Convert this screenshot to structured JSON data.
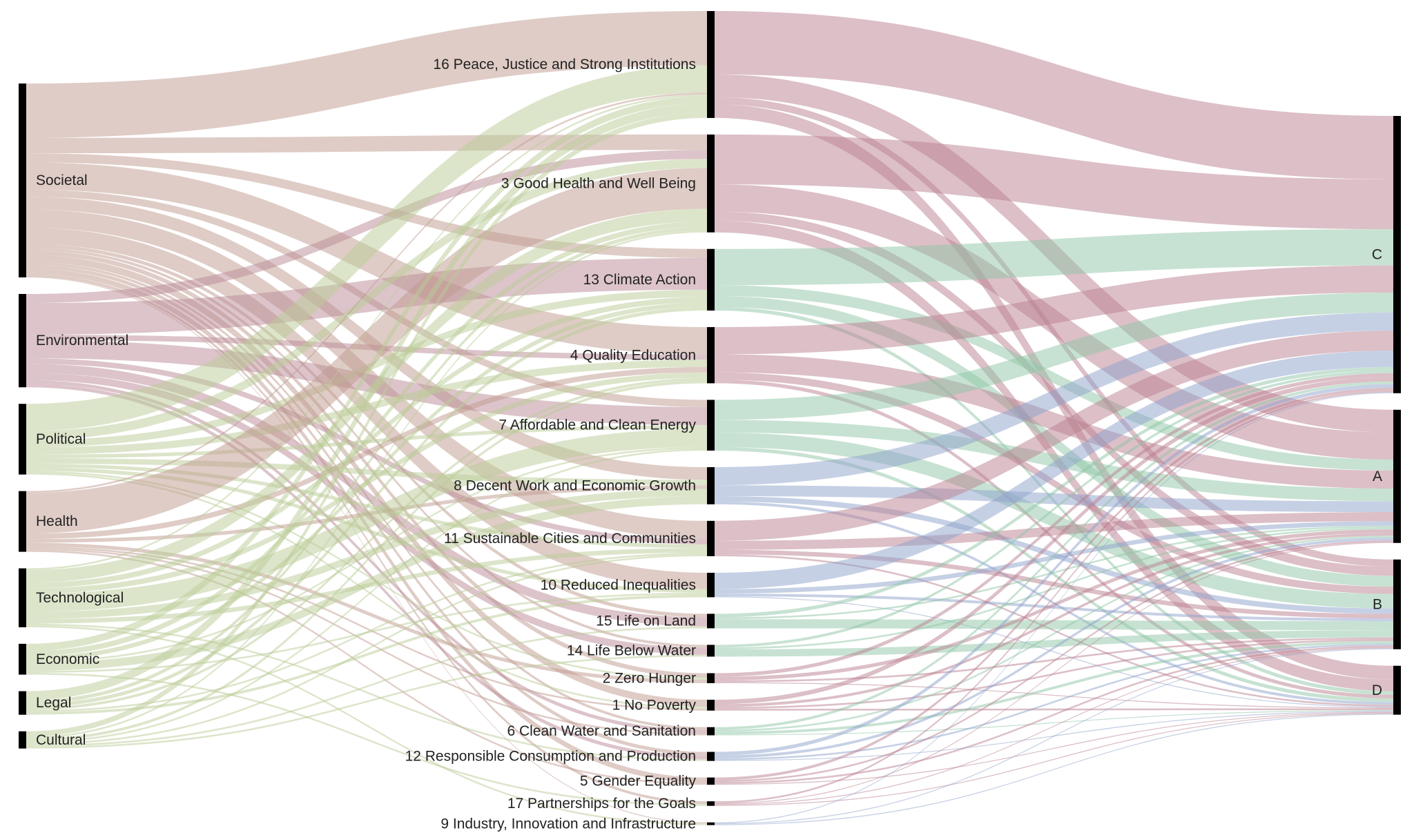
{
  "chart_data": {
    "type": "sankey",
    "columns": [
      [
        "Societal",
        "Environmental",
        "Political",
        "Health",
        "Technological",
        "Economic",
        "Legal",
        "Cultural"
      ],
      [
        "16 Peace, Justice and Strong Institutions",
        "3 Good Health and Well Being",
        "13 Climate Action",
        "4 Quality Education",
        "7 Affordable and Clean Energy",
        "8 Decent Work and Economic Growth",
        "11 Sustainable Cities and Communities",
        "10 Reduced Inequalities",
        "15 Life on Land",
        "14 Life Below Water",
        "2 Zero Hunger",
        "1 No Poverty",
        "6 Clean Water and Sanitation",
        "12 Responsible Consumption and Production",
        "5 Gender Equality",
        "17 Partnerships for the Goals",
        "9 Industry, Innovation and Infrastructure"
      ],
      [
        "C",
        "A",
        "B",
        "D"
      ]
    ],
    "node_colors": {
      "Societal": "#c09a8e",
      "Environmental": "#b98a95",
      "Health": "#c09a8e",
      "Political": "#b9cc95",
      "Technological": "#b9cc95",
      "Economic": "#b9cc95",
      "Legal": "#b9cc95",
      "Cultural": "#b9cc95",
      "social": "#b9808f",
      "environment": "#8fc6a5",
      "economy": "#8ea2cc"
    },
    "sdg_groups": {
      "16 Peace, Justice and Strong Institutions": "social",
      "3 Good Health and Well Being": "social",
      "13 Climate Action": "environment",
      "4 Quality Education": "social",
      "7 Affordable and Clean Energy": "environment",
      "8 Decent Work and Economic Growth": "economy",
      "11 Sustainable Cities and Communities": "social",
      "10 Reduced Inequalities": "economy",
      "15 Life on Land": "environment",
      "14 Life Below Water": "environment",
      "2 Zero Hunger": "social",
      "1 No Poverty": "social",
      "6 Clean Water and Sanitation": "environment",
      "12 Responsible Consumption and Production": "economy",
      "5 Gender Equality": "social",
      "17 Partnerships for the Goals": "social",
      "9 Industry, Innovation and Infrastructure": "economy"
    },
    "links_left": [
      [
        "Societal",
        {
          "16": 60,
          "3": 17,
          "4": 30,
          "7": 8,
          "8": 14,
          "11": 20,
          "10": 18,
          "13": 10,
          "2": 5,
          "1": 8,
          "5": 6,
          "15": 4,
          "14": 3,
          "6": 3,
          "12": 4,
          "17": 3,
          "9": 1
        }
      ],
      [
        "Environmental",
        {
          "13": 35,
          "7": 20,
          "15": 10,
          "14": 8,
          "6": 4,
          "12": 4,
          "3": 10,
          "4": 6,
          "11": 6
        }
      ],
      [
        "Political",
        {
          "16": 30,
          "3": 10,
          "13": 8,
          "4": 8,
          "8": 6,
          "11": 4,
          "10": 4,
          "7": 4,
          "1": 2,
          "2": 2
        }
      ],
      [
        "Health",
        {
          "3": 45,
          "4": 6,
          "8": 4,
          "2": 4,
          "1": 2,
          "6": 2,
          "5": 2,
          "16": 2
        }
      ],
      [
        "Technological",
        {
          "3": 14,
          "7": 20,
          "8": 8,
          "4": 6,
          "13": 6,
          "11": 5,
          "12": 2,
          "9": 2,
          "16": 2
        }
      ],
      [
        "Economic",
        {
          "8": 9,
          "16": 8,
          "3": 6,
          "13": 5,
          "7": 2,
          "10": 2,
          "17": 2
        }
      ],
      [
        "Legal",
        {
          "16": 10,
          "3": 4,
          "13": 4,
          "4": 3,
          "11": 2,
          "10": 3
        }
      ],
      [
        "Cultural",
        {
          "16": 6,
          "3": 2,
          "4": 3,
          "7": 2,
          "11": 2,
          "15": 2,
          "14": 2
        }
      ]
    ],
    "links_right": [
      [
        "16",
        {
          "C": 70,
          "A": 25,
          "B": 8,
          "D": 15
        }
      ],
      [
        "3",
        {
          "C": 55,
          "A": 30,
          "B": 10,
          "D": 13
        }
      ],
      [
        "13",
        {
          "C": 40,
          "A": 12,
          "B": 12,
          "D": 4
        }
      ],
      [
        "4",
        {
          "C": 30,
          "A": 20,
          "B": 8,
          "D": 4
        }
      ],
      [
        "7",
        {
          "C": 22,
          "A": 14,
          "B": 16,
          "D": 4
        }
      ],
      [
        "8",
        {
          "C": 20,
          "A": 12,
          "B": 6,
          "D": 3
        }
      ],
      [
        "11",
        {
          "C": 22,
          "A": 10,
          "B": 5,
          "D": 2
        }
      ],
      [
        "10",
        {
          "C": 18,
          "A": 5,
          "B": 3,
          "D": 1
        }
      ],
      [
        "15",
        {
          "C": 4,
          "A": 2,
          "B": 10
        }
      ],
      [
        "14",
        {
          "C": 3,
          "A": 2,
          "B": 8
        }
      ],
      [
        "2",
        {
          "C": 4,
          "A": 4,
          "B": 2,
          "D": 1
        }
      ],
      [
        "1",
        {
          "C": 5,
          "A": 3,
          "B": 2,
          "D": 2
        }
      ],
      [
        "6",
        {
          "C": 3,
          "A": 2,
          "B": 3,
          "D": 1
        }
      ],
      [
        "12",
        {
          "C": 4,
          "A": 3,
          "B": 2,
          "D": 1
        }
      ],
      [
        "5",
        {
          "C": 3,
          "A": 2,
          "B": 2,
          "D": 1
        }
      ],
      [
        "17",
        {
          "C": 2,
          "A": 1,
          "B": 1,
          "D": 1
        }
      ],
      [
        "9",
        {
          "C": 1,
          "B": 1,
          "D": 1
        }
      ]
    ]
  }
}
